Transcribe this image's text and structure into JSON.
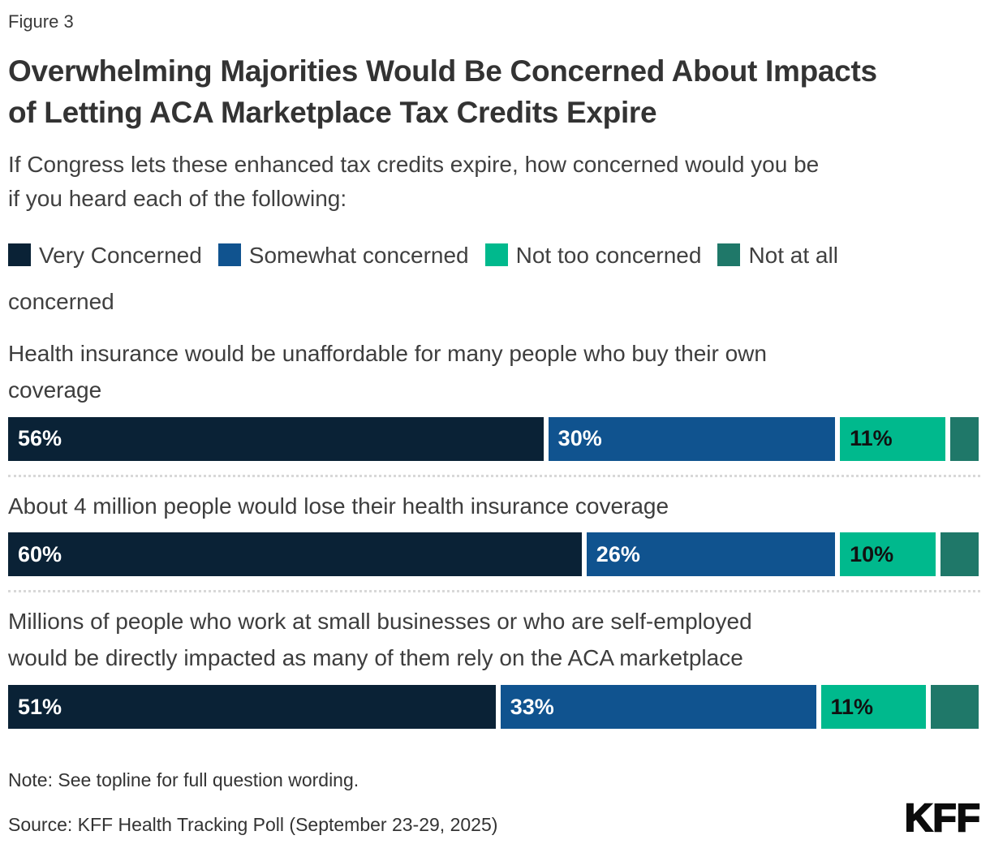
{
  "figure_label": "Figure 3",
  "title": "Overwhelming Majorities Would Be Concerned About Impacts\nof Letting ACA Marketplace Tax Credits Expire",
  "subtitle": "If Congress lets these enhanced tax credits expire, how concerned would you be\nif you heard each of the following:",
  "legend": {
    "items": [
      {
        "label": "Very Concerned",
        "color": "#0a2236"
      },
      {
        "label": "Somewhat concerned",
        "color": "#10538f"
      },
      {
        "label": "Not too concerned",
        "color": "#00b98d"
      },
      {
        "label": "Not at all concerned",
        "color": "#1f7869"
      }
    ]
  },
  "chart_data": {
    "type": "bar",
    "orientation": "horizontal",
    "stacked": true,
    "xlim": [
      0,
      100
    ],
    "value_suffix": "%",
    "categories": [
      "Health insurance would be unaffordable for many people who buy their own\ncoverage",
      "About 4 million people would lose their health insurance coverage",
      "Millions of people who work at small businesses or who are self-employed\nwould be directly impacted as many of them rely on the ACA marketplace"
    ],
    "series": [
      {
        "name": "Very Concerned",
        "color": "#0a2236",
        "label_color": "#ffffff",
        "show_labels": true,
        "values": [
          56,
          60,
          51
        ]
      },
      {
        "name": "Somewhat concerned",
        "color": "#10538f",
        "label_color": "#ffffff",
        "show_labels": true,
        "values": [
          30,
          26,
          33
        ]
      },
      {
        "name": "Not too concerned",
        "color": "#00b98d",
        "label_color": "#111111",
        "show_labels": true,
        "values": [
          11,
          10,
          11
        ]
      },
      {
        "name": "Not at all concerned",
        "color": "#1f7869",
        "label_color": "#ffffff",
        "show_labels": false,
        "values": [
          3,
          4,
          5
        ]
      }
    ]
  },
  "note": "Note: See topline for full question wording.",
  "source": "Source: KFF Health Tracking Poll (September 23-29, 2025)",
  "logo_text": "KFF"
}
